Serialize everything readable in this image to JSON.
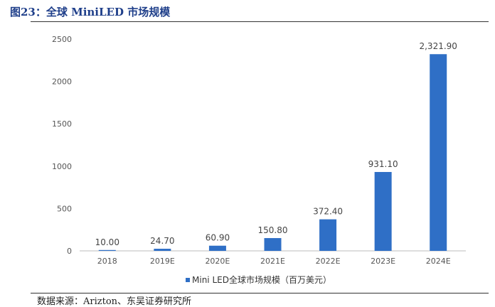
{
  "figure": {
    "title": "图23：全球 MiniLED 市场规模",
    "source": "数据来源：Arizton、东吴证券研究所"
  },
  "chart_data": {
    "type": "bar",
    "categories": [
      "2018",
      "2019E",
      "2020E",
      "2021E",
      "2022E",
      "2023E",
      "2024E"
    ],
    "series": [
      {
        "name": "Mini LED全球市场规模（百万美元）",
        "values": [
          10.0,
          24.7,
          60.9,
          150.8,
          372.4,
          931.1,
          2321.9
        ],
        "color": "#2f6fc6"
      }
    ],
    "data_labels": [
      "10.00",
      "24.70",
      "60.90",
      "150.80",
      "372.40",
      "931.10",
      "2,321.90"
    ],
    "yticks": [
      0,
      500,
      1000,
      1500,
      2000,
      2500
    ],
    "ylim": [
      0,
      2500
    ],
    "legend_position": "bottom",
    "grid": false
  }
}
